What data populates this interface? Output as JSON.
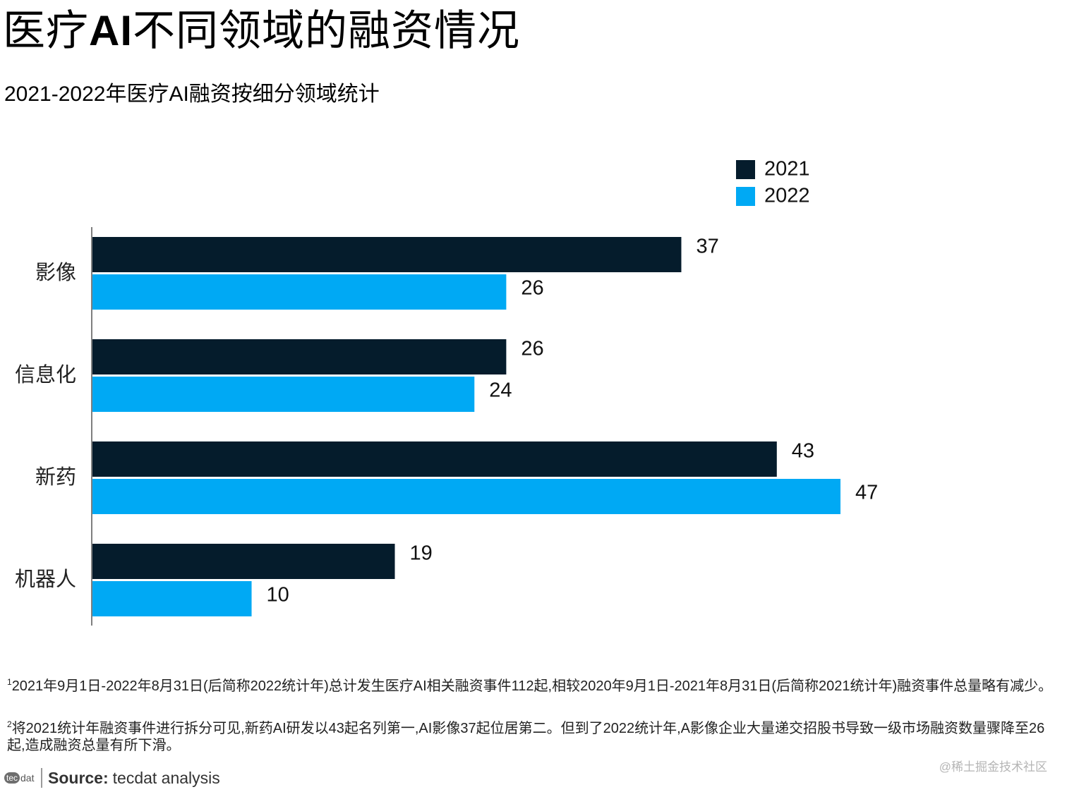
{
  "header": {
    "title_prefix": "医疗",
    "title_bold": "AI",
    "title_suffix": "不同领域的融资情况",
    "subtitle": "2021-2022年医疗AI融资按细分领域统计"
  },
  "chart_data": {
    "type": "bar",
    "orientation": "horizontal",
    "categories": [
      "影像",
      "信息化",
      "新药",
      "机器人"
    ],
    "series": [
      {
        "name": "2021",
        "values": [
          37,
          26,
          43,
          19
        ],
        "color": "#051c2c"
      },
      {
        "name": "2022",
        "values": [
          26,
          24,
          47,
          10
        ],
        "color": "#00a9f4"
      }
    ],
    "xlim": [
      0,
      47
    ],
    "data_labels": true,
    "grid": false,
    "legend_position": "top-right"
  },
  "footnotes": {
    "note1_marker": "1",
    "note1_text": "2021年9月1日-2022年8月31日(后简称2022统计年)总计发生医疗AI相关融资事件112起,相较2020年9月1日-2021年8月31日(后简称2021统计年)融资事件总量略有减少。",
    "note2_marker": "2",
    "note2_text": "将2021统计年融资事件进行拆分可见,新药AI研发以43起名列第一,AI影像37起位居第二。但到了2022统计年,A影像企业大量递交招股书导致一级市场融资数量骤降至26起,造成融资总量有所下滑。"
  },
  "source": {
    "logo_badge": "tec",
    "logo_suffix": "dat",
    "label": "Source:",
    "text": "tecdat analysis"
  },
  "watermark": "@稀土掘金技术社区"
}
